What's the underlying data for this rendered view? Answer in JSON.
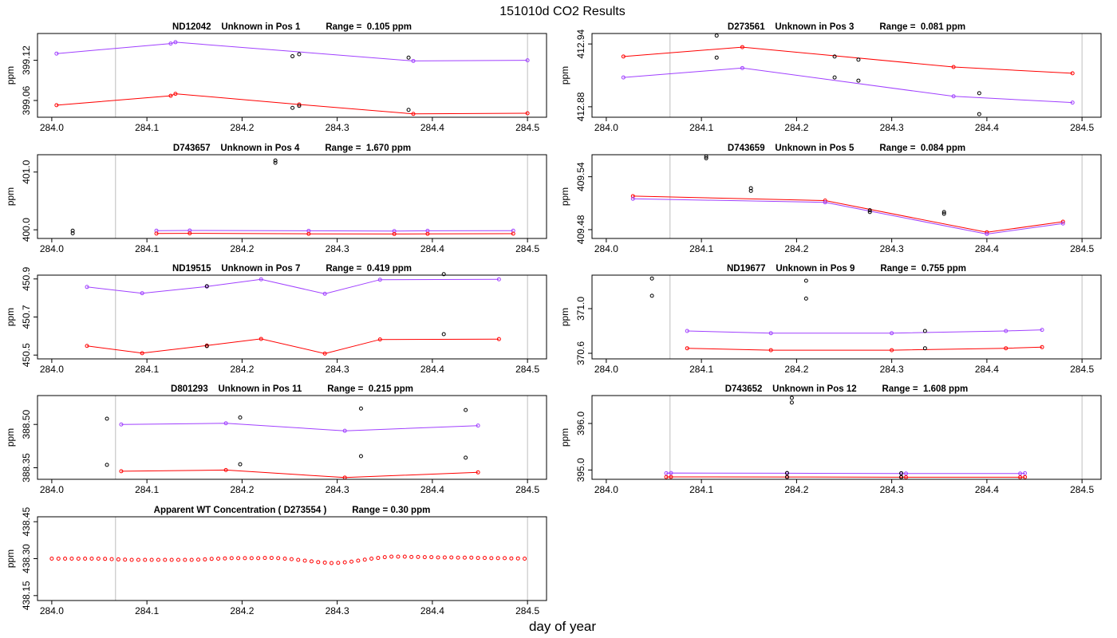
{
  "page_title": "151010d  CO2 Results",
  "x_axis_label": "day of year",
  "colors": {
    "purple": "#a040ff",
    "red": "#ff0000",
    "black": "#000000",
    "vline": "#bebebe",
    "frame": "#000000"
  },
  "chart_data": [
    {
      "type": "line",
      "title": "ND12042    Unknown in Pos 1          Range =  0.105 ppm",
      "ylabel": "ppm",
      "xlim": [
        283.985,
        284.52
      ],
      "ylim": [
        399.035,
        399.16
      ],
      "xticks": [
        "284.0",
        "284.1",
        "284.2",
        "284.3",
        "284.4",
        "284.5"
      ],
      "yticks": [
        [
          "399.06",
          399.06
        ],
        [
          "399.12",
          399.12
        ]
      ],
      "vlines": [
        284.067,
        284.5
      ],
      "series": [
        {
          "name": "purple",
          "color": "#a040ff",
          "x": [
            284.005,
            284.125,
            284.13,
            284.38,
            284.5
          ],
          "y": [
            399.13,
            399.145,
            399.147,
            399.119,
            399.12
          ]
        },
        {
          "name": "red",
          "color": "#ff0000",
          "x": [
            284.005,
            284.125,
            284.13,
            284.26,
            284.38,
            284.5
          ],
          "y": [
            399.053,
            399.067,
            399.07,
            399.054,
            399.04,
            399.041
          ]
        }
      ],
      "points": [
        {
          "x": 284.253,
          "y": 399.126
        },
        {
          "x": 284.26,
          "y": 399.129
        },
        {
          "x": 284.253,
          "y": 399.049
        },
        {
          "x": 284.26,
          "y": 399.052
        },
        {
          "x": 284.375,
          "y": 399.124
        },
        {
          "x": 284.375,
          "y": 399.046
        }
      ]
    },
    {
      "type": "line",
      "title": "D273561    Unknown in Pos 3          Range =  0.081 ppm",
      "ylabel": "ppm",
      "xlim": [
        283.985,
        284.52
      ],
      "ylim": [
        412.87,
        412.95
      ],
      "xticks": [
        "284.0",
        "284.1",
        "284.2",
        "284.3",
        "284.4",
        "284.5"
      ],
      "yticks": [
        [
          "412.88",
          412.88
        ],
        [
          "412.94",
          412.94
        ]
      ],
      "vlines": [
        284.067,
        284.5
      ],
      "series": [
        {
          "name": "red",
          "color": "#ff0000",
          "x": [
            284.018,
            284.143,
            284.365,
            284.49
          ],
          "y": [
            412.928,
            412.937,
            412.918,
            412.912
          ]
        },
        {
          "name": "purple",
          "color": "#a040ff",
          "x": [
            284.018,
            284.143,
            284.365,
            284.49
          ],
          "y": [
            412.908,
            412.917,
            412.89,
            412.884
          ]
        }
      ],
      "points": [
        {
          "x": 284.116,
          "y": 412.948
        },
        {
          "x": 284.116,
          "y": 412.927
        },
        {
          "x": 284.24,
          "y": 412.928
        },
        {
          "x": 284.265,
          "y": 412.925
        },
        {
          "x": 284.24,
          "y": 412.908
        },
        {
          "x": 284.265,
          "y": 412.905
        },
        {
          "x": 284.392,
          "y": 412.893
        },
        {
          "x": 284.392,
          "y": 412.873
        }
      ]
    },
    {
      "type": "line",
      "title": "D743657    Unknown in Pos 4          Range =  1.670 ppm",
      "ylabel": "ppm",
      "xlim": [
        283.985,
        284.52
      ],
      "ylim": [
        399.85,
        401.3
      ],
      "xticks": [
        "284.0",
        "284.1",
        "284.2",
        "284.3",
        "284.4",
        "284.5"
      ],
      "yticks": [
        [
          "400.0",
          400.0
        ],
        [
          "401.0",
          401.0
        ]
      ],
      "vlines": [
        284.067,
        284.5
      ],
      "series": [
        {
          "name": "purple",
          "color": "#a040ff",
          "x": [
            284.11,
            284.145,
            284.27,
            284.36,
            284.395,
            284.485
          ],
          "y": [
            399.985,
            399.988,
            399.982,
            399.978,
            399.983,
            399.985
          ]
        },
        {
          "name": "red",
          "color": "#ff0000",
          "x": [
            284.11,
            284.145,
            284.27,
            284.36,
            284.395,
            284.485
          ],
          "y": [
            399.935,
            399.938,
            399.93,
            399.927,
            399.93,
            399.933
          ]
        }
      ],
      "points": [
        {
          "x": 284.022,
          "y": 399.985
        },
        {
          "x": 284.022,
          "y": 399.94
        },
        {
          "x": 284.235,
          "y": 401.16
        },
        {
          "x": 284.235,
          "y": 401.2
        }
      ]
    },
    {
      "type": "line",
      "title": "D743659    Unknown in Pos 5          Range =  0.084 ppm",
      "ylabel": "ppm",
      "xlim": [
        283.985,
        284.52
      ],
      "ylim": [
        409.47,
        409.565
      ],
      "xticks": [
        "284.0",
        "284.1",
        "284.2",
        "284.3",
        "284.4",
        "284.5"
      ],
      "yticks": [
        [
          "409.48",
          409.48
        ],
        [
          "409.54",
          409.54
        ]
      ],
      "vlines": [
        284.067,
        284.5
      ],
      "series": [
        {
          "name": "red",
          "color": "#ff0000",
          "x": [
            284.028,
            284.23,
            284.4,
            284.48
          ],
          "y": [
            409.518,
            409.513,
            409.477,
            409.489
          ]
        },
        {
          "name": "purple",
          "color": "#a040ff",
          "x": [
            284.028,
            284.23,
            284.4,
            284.48
          ],
          "y": [
            409.515,
            409.511,
            409.475,
            409.487
          ]
        }
      ],
      "points": [
        {
          "x": 284.105,
          "y": 409.563
        },
        {
          "x": 284.105,
          "y": 409.561
        },
        {
          "x": 284.152,
          "y": 409.527
        },
        {
          "x": 284.152,
          "y": 409.524
        },
        {
          "x": 284.277,
          "y": 409.502
        },
        {
          "x": 284.277,
          "y": 409.5
        },
        {
          "x": 284.355,
          "y": 409.5
        },
        {
          "x": 284.355,
          "y": 409.498
        }
      ]
    },
    {
      "type": "line",
      "title": "ND19515    Unknown in Pos 7          Range =  0.419 ppm",
      "ylabel": "ppm",
      "xlim": [
        283.985,
        284.52
      ],
      "ylim": [
        450.48,
        450.92
      ],
      "xticks": [
        "284.0",
        "284.1",
        "284.2",
        "284.3",
        "284.4",
        "284.5"
      ],
      "yticks": [
        [
          "450.5",
          450.5
        ],
        [
          "450.7",
          450.7
        ],
        [
          "450.9",
          450.9
        ]
      ],
      "vlines": [
        284.067,
        284.5
      ],
      "series": [
        {
          "name": "purple",
          "color": "#a040ff",
          "x": [
            284.037,
            284.095,
            284.163,
            284.22,
            284.287,
            284.345,
            284.47
          ],
          "y": [
            450.858,
            450.825,
            450.86,
            450.898,
            450.822,
            450.896,
            450.898
          ]
        },
        {
          "name": "red",
          "color": "#ff0000",
          "x": [
            284.037,
            284.095,
            284.163,
            284.22,
            284.287,
            284.345,
            284.47
          ],
          "y": [
            450.548,
            450.51,
            450.55,
            450.585,
            450.508,
            450.582,
            450.584
          ]
        }
      ],
      "points": [
        {
          "x": 284.163,
          "y": 450.862
        },
        {
          "x": 284.163,
          "y": 450.547
        },
        {
          "x": 284.412,
          "y": 450.925
        },
        {
          "x": 284.412,
          "y": 450.61
        }
      ]
    },
    {
      "type": "line",
      "title": "ND19677    Unknown in Pos 9          Range =  0.755 ppm",
      "ylabel": "ppm",
      "xlim": [
        283.985,
        284.52
      ],
      "ylim": [
        370.55,
        371.3
      ],
      "xticks": [
        "284.0",
        "284.1",
        "284.2",
        "284.3",
        "284.4",
        "284.5"
      ],
      "yticks": [
        [
          "370.6",
          370.6
        ],
        [
          "371.0",
          371.0
        ]
      ],
      "vlines": [
        284.067,
        284.5
      ],
      "series": [
        {
          "name": "purple",
          "color": "#a040ff",
          "x": [
            284.085,
            284.173,
            284.3,
            284.42,
            284.458
          ],
          "y": [
            370.8,
            370.78,
            370.78,
            370.8,
            370.81
          ]
        },
        {
          "name": "red",
          "color": "#ff0000",
          "x": [
            284.085,
            284.173,
            284.3,
            284.42,
            284.458
          ],
          "y": [
            370.645,
            370.628,
            370.628,
            370.645,
            370.655
          ]
        }
      ],
      "points": [
        {
          "x": 284.048,
          "y": 371.27
        },
        {
          "x": 284.048,
          "y": 371.115
        },
        {
          "x": 284.21,
          "y": 371.25
        },
        {
          "x": 284.21,
          "y": 371.09
        },
        {
          "x": 284.335,
          "y": 370.8
        },
        {
          "x": 284.335,
          "y": 370.645
        }
      ]
    },
    {
      "type": "line",
      "title": "D801293    Unknown in Pos 11          Range =  0.215 ppm",
      "ylabel": "ppm",
      "xlim": [
        283.985,
        284.52
      ],
      "ylim": [
        388.31,
        388.6
      ],
      "xticks": [
        "284.0",
        "284.1",
        "284.2",
        "284.3",
        "284.4",
        "284.5"
      ],
      "yticks": [
        [
          "388.35",
          388.35
        ],
        [
          "388.50",
          388.5
        ]
      ],
      "vlines": [
        284.067,
        284.5
      ],
      "series": [
        {
          "name": "purple",
          "color": "#a040ff",
          "x": [
            284.073,
            284.183,
            284.308,
            284.448
          ],
          "y": [
            388.5,
            388.504,
            388.478,
            388.496
          ]
        },
        {
          "name": "red",
          "color": "#ff0000",
          "x": [
            284.073,
            284.183,
            284.308,
            284.448
          ],
          "y": [
            388.338,
            388.342,
            388.316,
            388.334
          ]
        }
      ],
      "points": [
        {
          "x": 284.058,
          "y": 388.52
        },
        {
          "x": 284.058,
          "y": 388.36
        },
        {
          "x": 284.198,
          "y": 388.524
        },
        {
          "x": 284.198,
          "y": 388.362
        },
        {
          "x": 284.325,
          "y": 388.555
        },
        {
          "x": 284.325,
          "y": 388.39
        },
        {
          "x": 284.435,
          "y": 388.55
        },
        {
          "x": 284.435,
          "y": 388.385
        }
      ]
    },
    {
      "type": "line",
      "title": "D743652    Unknown in Pos 12          Range =  1.608 ppm",
      "ylabel": "ppm",
      "xlim": [
        283.985,
        284.52
      ],
      "ylim": [
        394.8,
        396.6
      ],
      "xticks": [
        "284.0",
        "284.1",
        "284.2",
        "284.3",
        "284.4",
        "284.5"
      ],
      "yticks": [
        [
          "395.0",
          395.0
        ],
        [
          "396.0",
          396.0
        ]
      ],
      "vlines": [
        284.067,
        284.5
      ],
      "series": [
        {
          "name": "purple",
          "color": "#a040ff",
          "x": [
            284.063,
            284.068,
            284.19,
            284.31,
            284.315,
            284.435,
            284.44
          ],
          "y": [
            394.93,
            394.935,
            394.93,
            394.925,
            394.925,
            394.925,
            394.93
          ]
        },
        {
          "name": "red",
          "color": "#ff0000",
          "x": [
            284.063,
            284.068,
            284.19,
            284.31,
            284.315,
            284.435,
            284.44
          ],
          "y": [
            394.85,
            394.852,
            394.85,
            394.845,
            394.845,
            394.845,
            394.848
          ]
        }
      ],
      "points": [
        {
          "x": 284.19,
          "y": 394.935
        },
        {
          "x": 284.19,
          "y": 394.85
        },
        {
          "x": 284.31,
          "y": 394.93
        },
        {
          "x": 284.31,
          "y": 394.848
        },
        {
          "x": 284.195,
          "y": 396.55
        },
        {
          "x": 284.195,
          "y": 396.45
        }
      ]
    },
    {
      "type": "scatter",
      "title": "Apparent WT Concentration ( D273554 )          Range = 0.30 ppm",
      "ylabel": "ppm",
      "xlim": [
        283.985,
        284.52
      ],
      "ylim": [
        438.13,
        438.47
      ],
      "xticks": [
        "284.0",
        "284.1",
        "284.2",
        "284.3",
        "284.4",
        "284.5"
      ],
      "yticks": [
        [
          "438.15",
          438.15
        ],
        [
          "438.30",
          438.3
        ],
        [
          "438.45",
          438.45
        ]
      ],
      "vlines": [
        284.067,
        284.5
      ],
      "series": [
        {
          "name": "WT",
          "color": "#ff0000",
          "marker": "circle",
          "x": [
            284.0,
            284.007,
            284.014,
            284.021,
            284.028,
            284.035,
            284.042,
            284.049,
            284.056,
            284.063,
            284.07,
            284.077,
            284.084,
            284.091,
            284.098,
            284.105,
            284.112,
            284.119,
            284.126,
            284.133,
            284.14,
            284.147,
            284.154,
            284.161,
            284.168,
            284.175,
            284.182,
            284.189,
            284.196,
            284.203,
            284.21,
            284.217,
            284.224,
            284.231,
            284.238,
            284.245,
            284.252,
            284.259,
            284.266,
            284.273,
            284.28,
            284.287,
            284.294,
            284.301,
            284.308,
            284.315,
            284.322,
            284.329,
            284.336,
            284.343,
            284.35,
            284.357,
            284.364,
            284.371,
            284.378,
            284.385,
            284.392,
            284.399,
            284.406,
            284.413,
            284.42,
            284.427,
            284.434,
            284.441,
            284.448,
            284.455,
            284.462,
            284.469,
            284.476,
            284.483,
            284.49,
            284.497
          ],
          "y": [
            438.3,
            438.3,
            438.3,
            438.3,
            438.3,
            438.3,
            438.3,
            438.3,
            438.299,
            438.298,
            438.297,
            438.296,
            438.295,
            438.295,
            438.295,
            438.295,
            438.295,
            438.295,
            438.295,
            438.295,
            438.295,
            438.295,
            438.296,
            438.297,
            438.299,
            438.3,
            438.301,
            438.302,
            438.302,
            438.302,
            438.302,
            438.302,
            438.303,
            438.303,
            438.302,
            438.3,
            438.298,
            438.295,
            438.292,
            438.289,
            438.286,
            438.284,
            438.282,
            438.283,
            438.285,
            438.288,
            438.292,
            438.296,
            438.3,
            438.303,
            438.306,
            438.308,
            438.308,
            438.308,
            438.307,
            438.307,
            438.306,
            438.306,
            438.305,
            438.305,
            438.305,
            438.304,
            438.304,
            438.304,
            438.303,
            438.303,
            438.302,
            438.302,
            438.302,
            438.301,
            438.301,
            438.3
          ]
        }
      ],
      "points": []
    }
  ]
}
